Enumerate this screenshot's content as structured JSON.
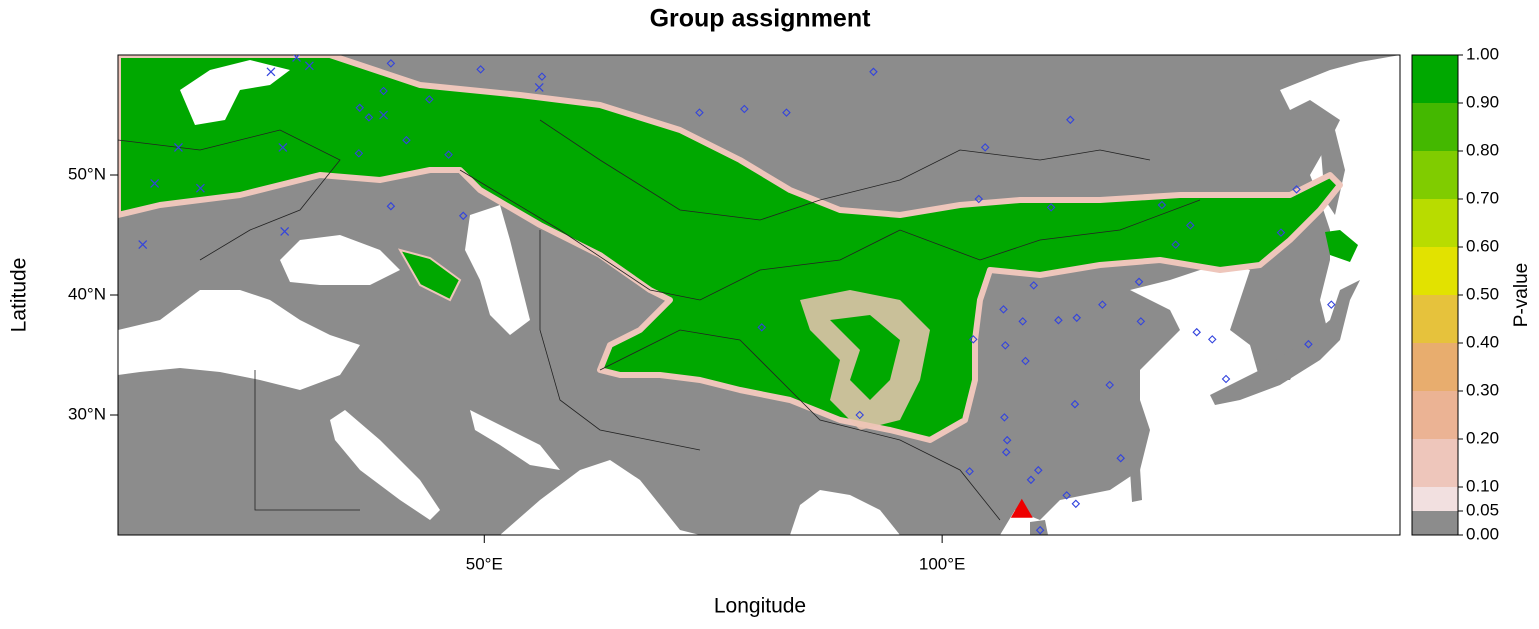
{
  "chart_data": {
    "type": "map",
    "title": "Group assignment",
    "x_label": "Longitude",
    "y_label": "Latitude",
    "xlim": [
      10,
      150
    ],
    "ylim": [
      20,
      60
    ],
    "xticks": [
      {
        "value": 50,
        "label": "50°E"
      },
      {
        "value": 100,
        "label": "100°E"
      }
    ],
    "yticks": [
      {
        "value": 30,
        "label": "30°N"
      },
      {
        "value": 40,
        "label": "40°N"
      },
      {
        "value": 50,
        "label": "50°N"
      }
    ],
    "sites": {
      "color": "#3344dd",
      "x": [
        39.8,
        49.6,
        56.3,
        92.5,
        78.4,
        83.0,
        73.5,
        44.0,
        39.0,
        36.4,
        37.4,
        41.5,
        36.3,
        104.7,
        114.0,
        104.0,
        111.9,
        124.0,
        127.1,
        125.5,
        137.0,
        138.7,
        110.0,
        121.5,
        106.7,
        108.8,
        112.7,
        114.7,
        117.5,
        121.7,
        127.8,
        129.5,
        131.0,
        140.0,
        142.5,
        103.4,
        106.9,
        109.1,
        114.5,
        118.3,
        106.8,
        107.1,
        107.0,
        119.5,
        103.0,
        109.7,
        110.5,
        113.6,
        114.6,
        110.7,
        91.0,
        80.3,
        47.7,
        46.1,
        39.8
      ],
      "y": [
        59.3,
        58.8,
        58.2,
        58.6,
        55.5,
        55.2,
        55.2,
        56.3,
        57.0,
        55.6,
        54.8,
        52.9,
        51.8,
        52.3,
        54.6,
        48.0,
        47.3,
        47.5,
        45.8,
        44.2,
        45.2,
        48.8,
        40.8,
        41.1,
        38.8,
        37.8,
        37.9,
        38.1,
        39.2,
        37.8,
        36.9,
        36.3,
        33.0,
        35.9,
        39.2,
        36.3,
        35.8,
        34.5,
        30.9,
        32.5,
        29.8,
        27.9,
        26.9,
        26.4,
        25.3,
        24.6,
        25.4,
        23.3,
        22.6,
        20.4,
        30.0,
        37.3,
        46.6,
        51.7,
        47.4
      ]
    },
    "crosses": {
      "color": "#3344dd",
      "x": [
        14.0,
        16.6,
        12.7,
        26.7,
        28.0,
        30.9,
        29.5,
        28.2,
        19.0,
        56.0,
        39.0
      ],
      "y": [
        49.3,
        52.3,
        44.2,
        58.6,
        52.3,
        59.1,
        59.8,
        45.3,
        48.9,
        57.3,
        55.0
      ]
    },
    "reference": {
      "color": "#ee0000",
      "x": 108.7,
      "y": 22.1
    },
    "colorbar": {
      "title": "P-value",
      "lim": [
        0,
        1
      ],
      "breaks": [
        0,
        0.05,
        0.1,
        0.2,
        0.3,
        0.4,
        0.5,
        0.6,
        0.7,
        0.8,
        0.9,
        1
      ],
      "colors": [
        "#8c8c8c",
        "#f2e0e0",
        "#eec6bb",
        "#ebb394",
        "#e8ad6e",
        "#e6c23c",
        "#e2e200",
        "#b8dc00",
        "#80cc00",
        "#44b800",
        "#00a800"
      ],
      "ticks": [
        {
          "value": 0,
          "label": "0.00"
        },
        {
          "value": 0.05,
          "label": "0.05"
        },
        {
          "value": 0.1,
          "label": "0.10"
        },
        {
          "value": 0.2,
          "label": "0.20"
        },
        {
          "value": 0.3,
          "label": "0.30"
        },
        {
          "value": 0.4,
          "label": "0.40"
        },
        {
          "value": 0.5,
          "label": "0.50"
        },
        {
          "value": 0.6,
          "label": "0.60"
        },
        {
          "value": 0.7,
          "label": "0.70"
        },
        {
          "value": 0.8,
          "label": "0.80"
        },
        {
          "value": 0.9,
          "label": "0.90"
        },
        {
          "value": 1,
          "label": "1.00"
        }
      ]
    }
  }
}
